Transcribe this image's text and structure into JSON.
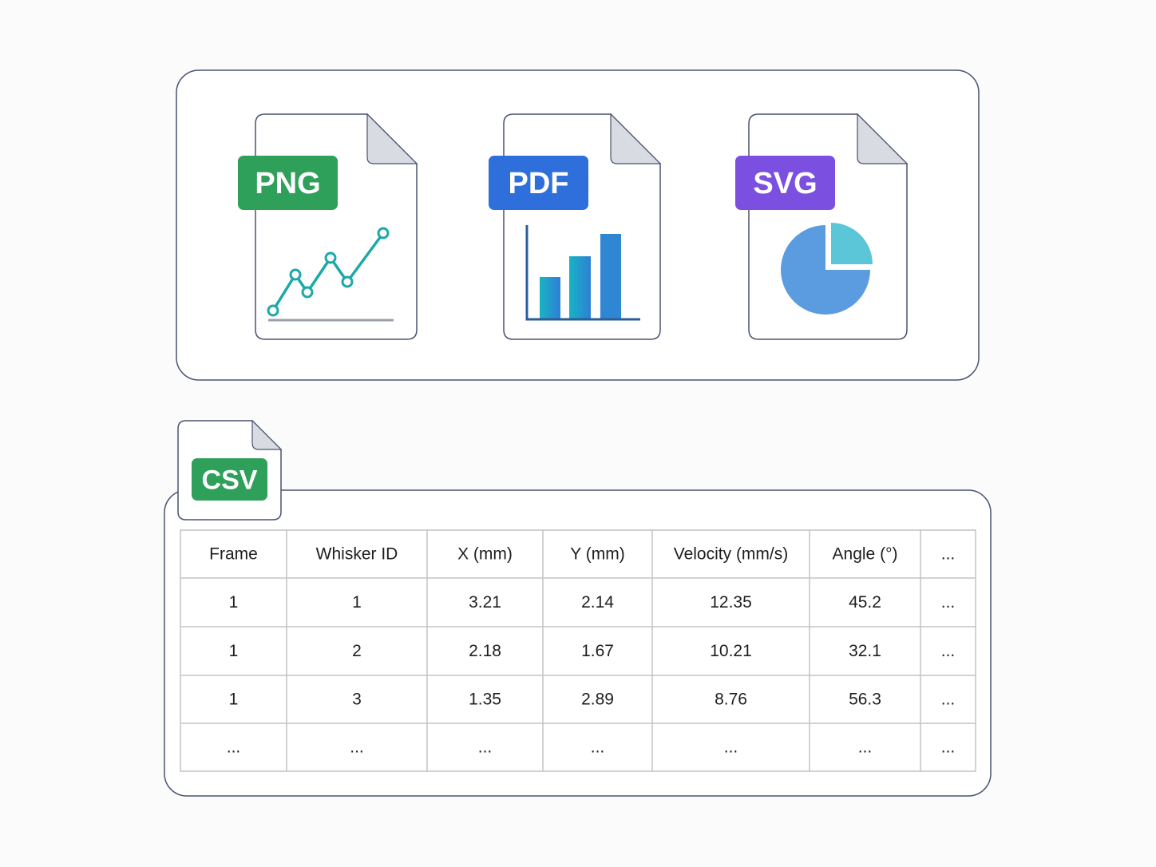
{
  "files": [
    {
      "label": "PNG"
    },
    {
      "label": "PDF"
    },
    {
      "label": "SVG"
    }
  ],
  "csv": {
    "label": "CSV"
  },
  "table": {
    "header": [
      "Frame",
      "Whisker ID",
      "X (mm)",
      "Y (mm)",
      "Velocity (mm/s)",
      "Angle (°)",
      "..."
    ],
    "rows": [
      [
        "1",
        "1",
        "3.21",
        "2.14",
        "12.35",
        "45.2",
        "..."
      ],
      [
        "1",
        "2",
        "2.18",
        "1.67",
        "10.21",
        "32.1",
        "..."
      ],
      [
        "1",
        "3",
        "1.35",
        "2.89",
        "8.76",
        "56.3",
        "..."
      ],
      [
        "...",
        "...",
        "...",
        "...",
        "...",
        "...",
        "..."
      ]
    ]
  }
}
